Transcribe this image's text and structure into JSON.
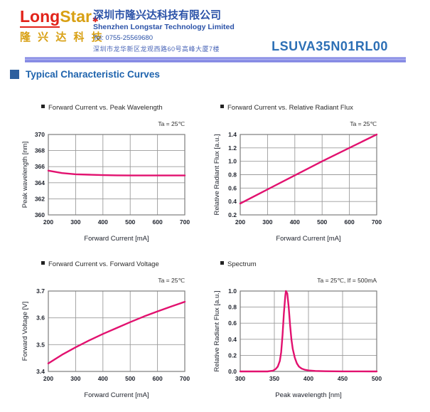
{
  "header": {
    "logo": {
      "word_long": "Long",
      "word_star": "Star",
      "star_mark": "✱",
      "cjk": "隆 兴 达 科 技"
    },
    "company_cn": "深圳市隆兴达科技有限公司",
    "company_en": "Shenzhen Longstar Technology Limited",
    "tel": "Tel: 0755-25569680",
    "address": "深圳市龙华新区龙观西路60号高峰大厦7楼",
    "part_number": "LSUVA35N01RL00"
  },
  "section": {
    "title": "Typical Characteristic Curves"
  },
  "colors": {
    "curve": "#e2116f",
    "grid": "#9a9a9a",
    "axis": "#7d7d7d",
    "brand_blue": "#2b52a8",
    "accent_blue": "#1e63ad",
    "logo_red": "#e2231a",
    "logo_gold": "#d8a013"
  },
  "chart_data": [
    {
      "type": "line",
      "title": "Forward Current vs. Peak Wavelength",
      "annotation": "Ta = 25℃",
      "xlabel": "Forward Current [mA]",
      "ylabel": "Peak wavelength [nm]",
      "xlim": [
        200,
        700
      ],
      "ylim": [
        360,
        370
      ],
      "xticks": [
        "200",
        "300",
        "400",
        "500",
        "600",
        "700"
      ],
      "yticks": [
        "360",
        "362",
        "364",
        "366",
        "368",
        "370"
      ],
      "grid": "on",
      "points": [
        [
          200,
          365.5
        ],
        [
          250,
          365.2
        ],
        [
          300,
          365.05
        ],
        [
          350,
          365.0
        ],
        [
          400,
          364.95
        ],
        [
          450,
          364.92
        ],
        [
          500,
          364.9
        ],
        [
          600,
          364.9
        ],
        [
          700,
          364.9
        ]
      ]
    },
    {
      "type": "line",
      "title": "Forward Current vs. Relative Radiant Flux",
      "annotation": "Ta = 25℃",
      "xlabel": "Forward Current [mA]",
      "ylabel": "Relative Radiant Flux [a.u.]",
      "xlim": [
        200,
        700
      ],
      "ylim": [
        0.2,
        1.4
      ],
      "xticks": [
        "200",
        "300",
        "400",
        "500",
        "600",
        "700"
      ],
      "yticks": [
        "0.2",
        "0.4",
        "0.6",
        "0.8",
        "1.0",
        "1.2",
        "1.4"
      ],
      "grid": "on",
      "points": [
        [
          200,
          0.37
        ],
        [
          300,
          0.58
        ],
        [
          400,
          0.79
        ],
        [
          500,
          1.0
        ],
        [
          600,
          1.2
        ],
        [
          700,
          1.4
        ]
      ]
    },
    {
      "type": "line",
      "title": "Forward Current vs. Forward Voltage",
      "annotation": "Ta = 25℃",
      "xlabel": "Forward Current [mA]",
      "ylabel": "Forward Voltage [V]",
      "xlim": [
        200,
        700
      ],
      "ylim": [
        3.4,
        3.7
      ],
      "xticks": [
        "200",
        "300",
        "400",
        "500",
        "600",
        "700"
      ],
      "yticks": [
        "3.4",
        "3.5",
        "3.6",
        "3.7"
      ],
      "grid": "on",
      "points": [
        [
          200,
          3.43
        ],
        [
          250,
          3.462
        ],
        [
          300,
          3.49
        ],
        [
          350,
          3.516
        ],
        [
          400,
          3.54
        ],
        [
          450,
          3.562
        ],
        [
          500,
          3.584
        ],
        [
          550,
          3.605
        ],
        [
          600,
          3.624
        ],
        [
          650,
          3.642
        ],
        [
          700,
          3.66
        ]
      ]
    },
    {
      "type": "line",
      "title": "Spectrum",
      "annotation": "Ta = 25℃,  If = 500mA",
      "xlabel": "Peak wavelength [nm]",
      "ylabel": "Relative Radiant Flux [a.u.]",
      "xlim": [
        300,
        500
      ],
      "ylim": [
        0,
        1.0
      ],
      "xticks": [
        "300",
        "350",
        "400",
        "450",
        "500"
      ],
      "yticks": [
        "0.0",
        "0.2",
        "0.4",
        "0.6",
        "0.8",
        "1.0"
      ],
      "grid": "on",
      "points": [
        [
          300,
          0
        ],
        [
          340,
          0
        ],
        [
          348,
          0.01
        ],
        [
          352,
          0.03
        ],
        [
          355,
          0.06
        ],
        [
          358,
          0.13
        ],
        [
          360,
          0.24
        ],
        [
          362,
          0.45
        ],
        [
          364,
          0.72
        ],
        [
          366,
          0.94
        ],
        [
          367,
          1.0
        ],
        [
          369,
          0.97
        ],
        [
          371,
          0.8
        ],
        [
          373,
          0.58
        ],
        [
          375,
          0.4
        ],
        [
          377,
          0.28
        ],
        [
          380,
          0.17
        ],
        [
          383,
          0.1
        ],
        [
          386,
          0.06
        ],
        [
          390,
          0.035
        ],
        [
          395,
          0.02
        ],
        [
          400,
          0.012
        ],
        [
          410,
          0.006
        ],
        [
          425,
          0.003
        ],
        [
          450,
          0.001
        ],
        [
          500,
          0
        ]
      ]
    }
  ]
}
